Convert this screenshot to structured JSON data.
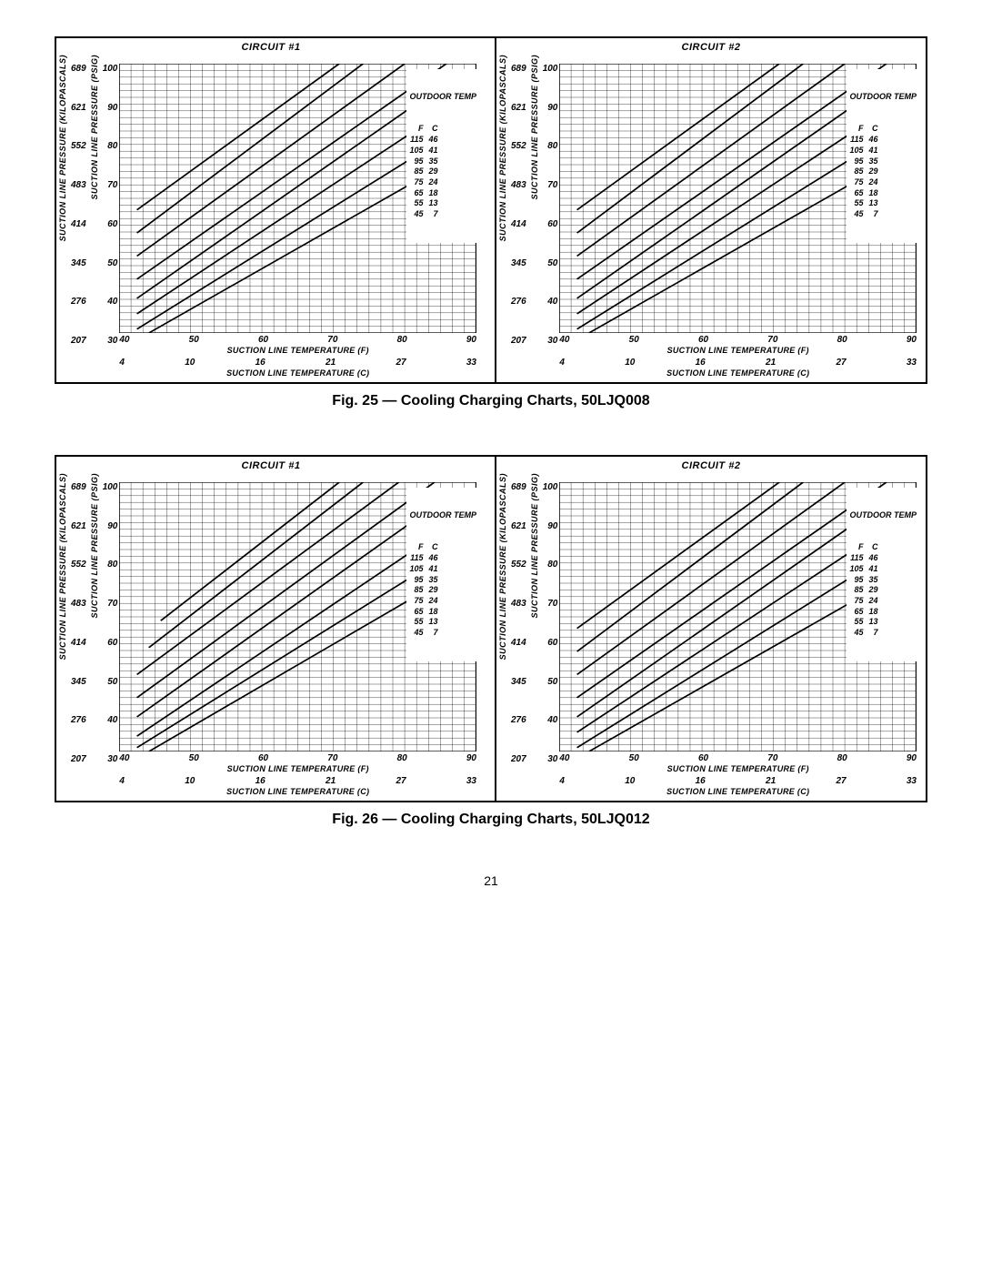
{
  "page_number": "21",
  "figures": [
    {
      "caption": "Fig. 25 — Cooling Charging Charts, 50LJQ008",
      "panels": [
        {
          "title": "CIRCUIT #1"
        },
        {
          "title": "CIRCUIT #2"
        }
      ]
    },
    {
      "caption": "Fig. 26 — Cooling Charging Charts, 50LJQ012",
      "panels": [
        {
          "title": "CIRCUIT #1"
        },
        {
          "title": "CIRCUIT #2"
        }
      ]
    }
  ],
  "chart_spec": {
    "type": "line",
    "background_color": "#ffffff",
    "grid_color": "#000000",
    "line_color": "#000000",
    "line_width": 1.5,
    "y1_label": "SUCTION LINE PRESSURE (KILOPASCALS)",
    "y2_label": "SUCTION LINE PRESSURE (PSIG)",
    "y1_ticks": [
      "689",
      "621",
      "552",
      "483",
      "414",
      "345",
      "276",
      "207"
    ],
    "y2_ticks": [
      "100",
      "90",
      "80",
      "70",
      "60",
      "50",
      "40",
      "30"
    ],
    "ylim_psig": [
      30,
      100
    ],
    "x1_label": "SUCTION LINE TEMPERATURE (F)",
    "x2_label": "SUCTION LINE TEMPERATURE (C)",
    "x1_ticks": [
      "40",
      "50",
      "60",
      "70",
      "80",
      "90"
    ],
    "x2_ticks": [
      "4",
      "10",
      "16",
      "21",
      "27",
      "33"
    ],
    "xlim_f": [
      35,
      95
    ],
    "grid_major_x": 6,
    "grid_major_y": 8,
    "grid_minor_per_major": 5,
    "legend_title": "OUTDOOR TEMP",
    "legend_cols": [
      "F",
      "C"
    ],
    "legend_rows": [
      [
        "115",
        "46"
      ],
      [
        "105",
        "41"
      ],
      [
        "95",
        "35"
      ],
      [
        "85",
        "29"
      ],
      [
        "75",
        "24"
      ],
      [
        "65",
        "18"
      ],
      [
        "55",
        "13"
      ],
      [
        "45",
        "7"
      ]
    ],
    "series": [
      {
        "x": [
          38,
          72
        ],
        "y_psig": [
          62,
          100
        ]
      },
      {
        "x": [
          38,
          76
        ],
        "y_psig": [
          56,
          100
        ]
      },
      {
        "x": [
          38,
          83
        ],
        "y_psig": [
          50,
          100
        ]
      },
      {
        "x": [
          38,
          90
        ],
        "y_psig": [
          44,
          100
        ]
      },
      {
        "x": [
          38,
          90
        ],
        "y_psig": [
          39,
          95
        ]
      },
      {
        "x": [
          38,
          90
        ],
        "y_psig": [
          35,
          88
        ]
      },
      {
        "x": [
          38,
          90
        ],
        "y_psig": [
          31,
          81
        ]
      },
      {
        "x": [
          40,
          90
        ],
        "y_psig": [
          30,
          74
        ]
      }
    ]
  },
  "chart_variant_fig26_c1": {
    "series": [
      {
        "x": [
          42,
          72
        ],
        "y_psig": [
          64,
          100
        ]
      },
      {
        "x": [
          40,
          76
        ],
        "y_psig": [
          57,
          100
        ]
      },
      {
        "x": [
          38,
          82
        ],
        "y_psig": [
          50,
          100
        ]
      },
      {
        "x": [
          38,
          88
        ],
        "y_psig": [
          44,
          100
        ]
      },
      {
        "x": [
          38,
          90
        ],
        "y_psig": [
          39,
          96
        ]
      },
      {
        "x": [
          38,
          90
        ],
        "y_psig": [
          34,
          88
        ]
      },
      {
        "x": [
          38,
          90
        ],
        "y_psig": [
          31,
          81
        ]
      },
      {
        "x": [
          40,
          90
        ],
        "y_psig": [
          30,
          75
        ]
      }
    ]
  }
}
